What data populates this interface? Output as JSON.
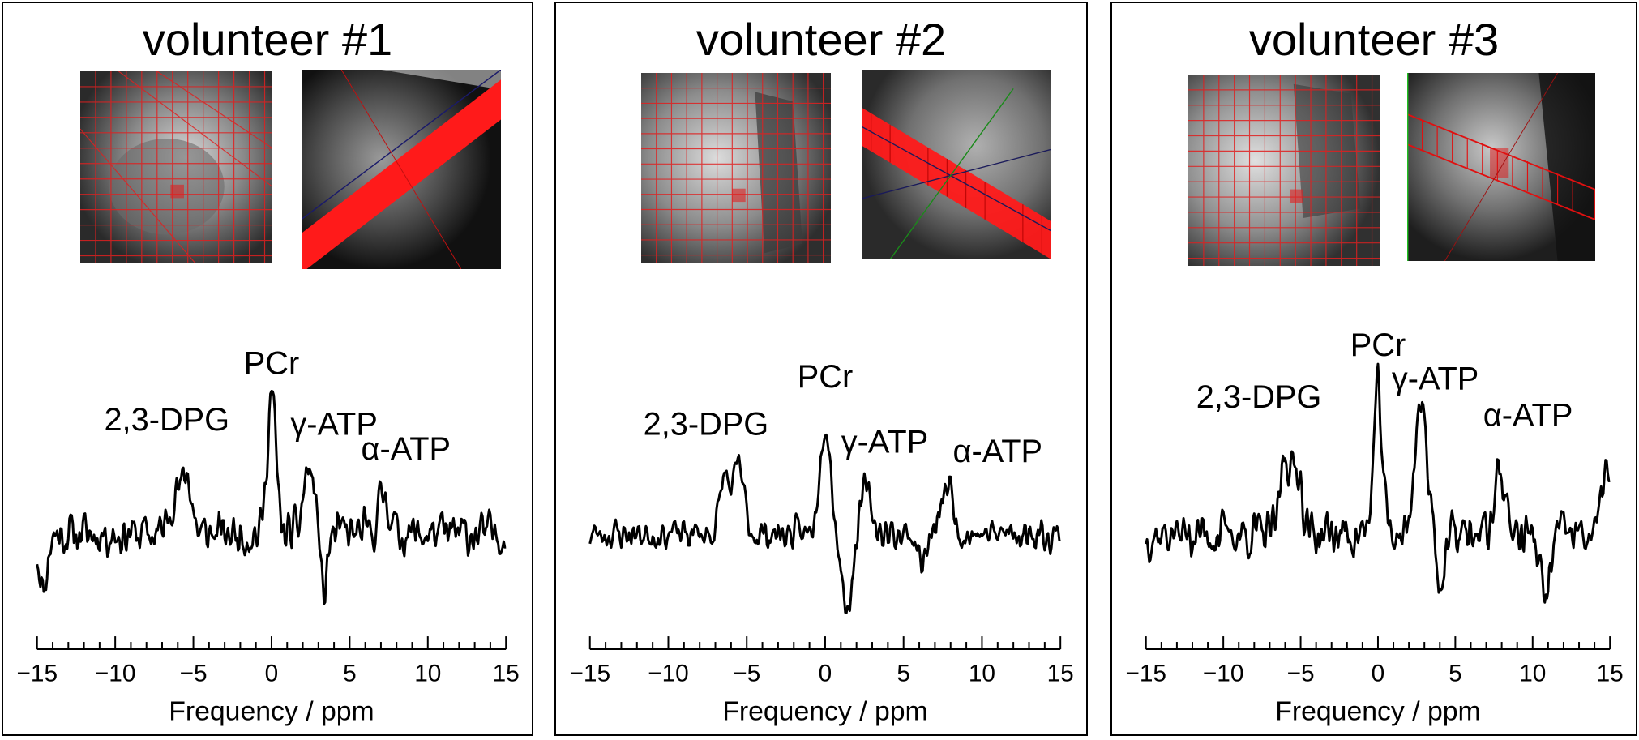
{
  "volunteers": [
    {
      "title": "volunteer #1",
      "image_labels": [
        "localizer-grid-icon",
        "oblique-slab-icon"
      ]
    },
    {
      "title": "volunteer #2",
      "image_labels": [
        "localizer-grid-icon",
        "oblique-slab-icon"
      ]
    },
    {
      "title": "volunteer #3",
      "image_labels": [
        "localizer-grid-icon",
        "oblique-slab-icon"
      ]
    }
  ],
  "chart_data": [
    {
      "type": "line",
      "title": "volunteer #1",
      "xlabel": "Frequency / ppm",
      "ylabel": "",
      "xlim": [
        -15,
        15
      ],
      "ylim": [
        -1.4,
        3.6
      ],
      "xticks": [
        -15,
        -10,
        -5,
        0,
        5,
        10,
        15
      ],
      "xtick_labels": [
        "−15",
        "−10",
        "−5",
        "0",
        "5",
        "10",
        "15"
      ],
      "grid": false,
      "noise_amp": 0.42,
      "seed": 11,
      "peaks": [
        {
          "x": -6.2,
          "amp": 0.9,
          "w": 0.35
        },
        {
          "x": -5.4,
          "amp": 1.3,
          "w": 0.3
        },
        {
          "x": 0.0,
          "amp": 3.1,
          "w": 0.28
        },
        {
          "x": 2.3,
          "amp": 1.3,
          "w": 0.3
        },
        {
          "x": 2.9,
          "amp": 0.7,
          "w": 0.3
        },
        {
          "x": 7.2,
          "amp": 0.9,
          "w": 0.35
        },
        {
          "x": 3.3,
          "amp": -1.6,
          "w": 0.22
        },
        {
          "x": -14.6,
          "amp": -1.2,
          "w": 0.25
        }
      ],
      "annotations": [
        {
          "text": "PCr",
          "x": 0.0,
          "y": 3.55
        },
        {
          "text": "2,3-DPG",
          "x": -6.7,
          "y": 2.3
        },
        {
          "text": "γ-ATP",
          "x": 4.0,
          "y": 2.2
        },
        {
          "text": "α-ATP",
          "x": 8.6,
          "y": 1.65
        }
      ]
    },
    {
      "type": "line",
      "title": "volunteer #2",
      "xlabel": "Frequency / ppm",
      "ylabel": "",
      "xlim": [
        -15,
        15
      ],
      "ylim": [
        -1.4,
        3.6
      ],
      "xticks": [
        -15,
        -10,
        -5,
        0,
        5,
        10,
        15
      ],
      "xtick_labels": [
        "−15",
        "−10",
        "−5",
        "0",
        "5",
        "10",
        "15"
      ],
      "grid": false,
      "noise_amp": 0.3,
      "seed": 23,
      "peaks": [
        {
          "x": -6.4,
          "amp": 1.3,
          "w": 0.3
        },
        {
          "x": -5.5,
          "amp": 1.5,
          "w": 0.32
        },
        {
          "x": 0.0,
          "amp": 2.5,
          "w": 0.35
        },
        {
          "x": 1.4,
          "amp": -1.6,
          "w": 0.35
        },
        {
          "x": 2.6,
          "amp": 1.0,
          "w": 0.35
        },
        {
          "x": 7.8,
          "amp": 1.1,
          "w": 0.35
        },
        {
          "x": 6.2,
          "amp": -0.6,
          "w": 0.3
        }
      ],
      "annotations": [
        {
          "text": "PCr",
          "x": 0.0,
          "y": 3.25
        },
        {
          "text": "2,3-DPG",
          "x": -7.6,
          "y": 2.2
        },
        {
          "text": "γ-ATP",
          "x": 3.8,
          "y": 1.8
        },
        {
          "text": "α-ATP",
          "x": 11.0,
          "y": 1.6
        }
      ]
    },
    {
      "type": "line",
      "title": "volunteer #3",
      "xlabel": "Frequency / ppm",
      "ylabel": "",
      "xlim": [
        -15,
        15
      ],
      "ylim": [
        -1.4,
        3.6
      ],
      "xticks": [
        -15,
        -10,
        -5,
        0,
        5,
        10,
        15
      ],
      "xtick_labels": [
        "−15",
        "−10",
        "−5",
        "0",
        "5",
        "10",
        "15"
      ],
      "grid": false,
      "noise_amp": 0.45,
      "seed": 37,
      "peaks": [
        {
          "x": -6.0,
          "amp": 1.8,
          "w": 0.3
        },
        {
          "x": -5.2,
          "amp": 1.5,
          "w": 0.3
        },
        {
          "x": 0.0,
          "amp": 3.1,
          "w": 0.28
        },
        {
          "x": 2.6,
          "amp": 2.3,
          "w": 0.3
        },
        {
          "x": 3.1,
          "amp": 1.5,
          "w": 0.3
        },
        {
          "x": 7.9,
          "amp": 1.4,
          "w": 0.35
        },
        {
          "x": 14.7,
          "amp": 1.5,
          "w": 0.25
        },
        {
          "x": 10.8,
          "amp": -1.5,
          "w": 0.3
        },
        {
          "x": 4.1,
          "amp": -1.2,
          "w": 0.25
        }
      ],
      "annotations": [
        {
          "text": "PCr",
          "x": 0.0,
          "y": 3.95
        },
        {
          "text": "2,3-DPG",
          "x": -7.7,
          "y": 2.8
        },
        {
          "text": "γ-ATP",
          "x": 3.7,
          "y": 3.2
        },
        {
          "text": "α-ATP",
          "x": 9.7,
          "y": 2.4
        }
      ]
    }
  ]
}
